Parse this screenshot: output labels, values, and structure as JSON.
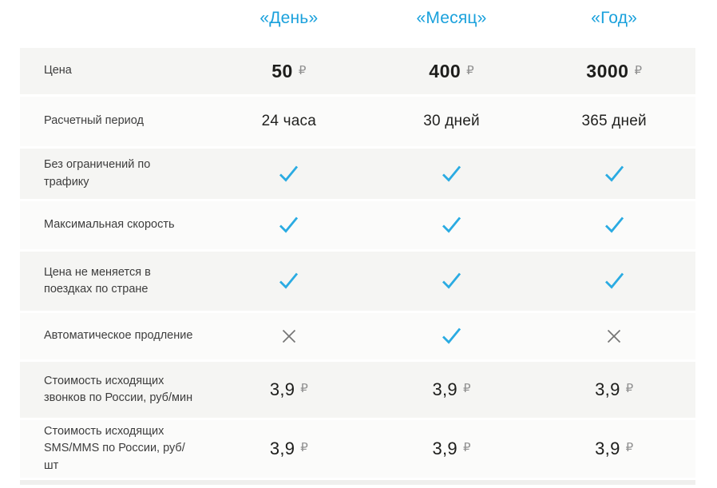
{
  "colors": {
    "accent_cyan": "#1aa1dc",
    "check_cyan": "#2aabe2",
    "cross_gray": "#757575",
    "row_gray": "#f5f5f3",
    "row_light": "#fbfbfa",
    "value_text": "#1d1d1b",
    "ruble_gray": "#8f8f8f"
  },
  "header": {
    "columns": [
      "«День»",
      "«Месяц»",
      "«Год»"
    ]
  },
  "rows": [
    {
      "label": "Цена",
      "kind": "price",
      "cells": [
        {
          "num": "50",
          "cur": "₽"
        },
        {
          "num": "400",
          "cur": "₽"
        },
        {
          "num": "3000",
          "cur": "₽"
        }
      ]
    },
    {
      "label": "Расчетный период",
      "kind": "text",
      "cells": [
        {
          "text": "24 часа"
        },
        {
          "text": "30 дней"
        },
        {
          "text": "365 дней"
        }
      ]
    },
    {
      "label": "Без ограничений по трафику",
      "kind": "icon",
      "cells": [
        "check",
        "check",
        "check"
      ]
    },
    {
      "label": "Максимальная скорость",
      "kind": "icon",
      "cells": [
        "check",
        "check",
        "check"
      ]
    },
    {
      "label": "Цена не меняется в поездках по стране",
      "kind": "icon",
      "cells": [
        "check",
        "check",
        "check"
      ]
    },
    {
      "label": "Автоматическое продление",
      "kind": "icon",
      "cells": [
        "cross",
        "check",
        "cross"
      ]
    },
    {
      "label": "Стоимость исходящих звонков по России, руб/мин",
      "kind": "price",
      "cells": [
        {
          "num": "3,9",
          "cur": "₽"
        },
        {
          "num": "3,9",
          "cur": "₽"
        },
        {
          "num": "3,9",
          "cur": "₽"
        }
      ]
    },
    {
      "label": "Стоимость исходящих SMS/MMS по России, руб/шт",
      "kind": "price",
      "cells": [
        {
          "num": "3,9",
          "cur": "₽"
        },
        {
          "num": "3,9",
          "cur": "₽"
        },
        {
          "num": "3,9",
          "cur": "₽"
        }
      ]
    }
  ]
}
